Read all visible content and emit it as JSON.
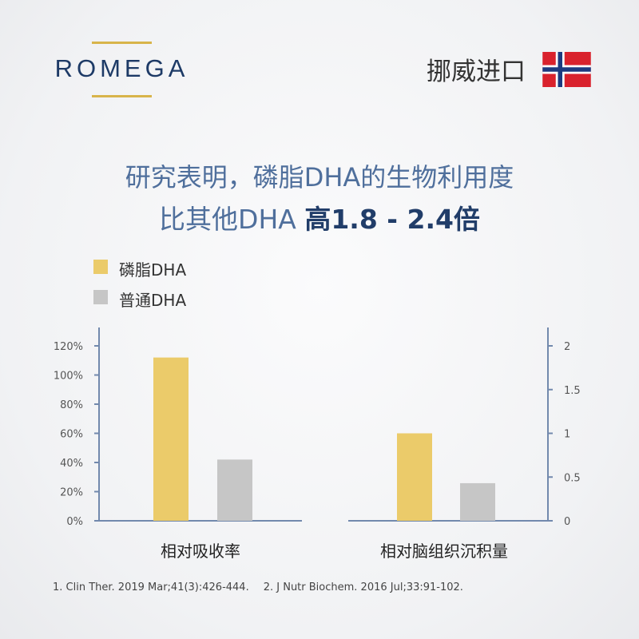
{
  "brand": {
    "name": "ROMEGA"
  },
  "origin_text": "挪威进口",
  "headline": {
    "line1": "研究表明，磷脂DHA的生物利用度",
    "line2_prefix": "比其他DHA ",
    "line2_strong": "高1.8 - 2.4倍"
  },
  "legend": [
    {
      "label": "磷脂DHA",
      "color": "#ebcb6a"
    },
    {
      "label": "普通DHA",
      "color": "#c6c6c6"
    }
  ],
  "colors": {
    "axis": "#7289ad",
    "flag_red": "#d9222d",
    "flag_blue": "#1d3a80"
  },
  "chart_data": [
    {
      "type": "bar",
      "xlabel": "相对吸收率",
      "ylim": [
        0,
        120
      ],
      "yticks": [
        "120%",
        "100%",
        "80%",
        "60%",
        "40%",
        "20%",
        "0%"
      ],
      "ytick_values": [
        120,
        100,
        80,
        60,
        40,
        20,
        0
      ],
      "axis_side": "left",
      "series": [
        {
          "name": "磷脂DHA",
          "values": [
            112
          ]
        },
        {
          "name": "普通DHA",
          "values": [
            42
          ]
        }
      ]
    },
    {
      "type": "bar",
      "xlabel": "相对脑组织沉积量",
      "ylim": [
        0,
        2
      ],
      "yticks": [
        "2",
        "1.5",
        "1",
        "0.5",
        "0"
      ],
      "ytick_values": [
        2,
        1.5,
        1,
        0.5,
        0
      ],
      "axis_side": "right",
      "series": [
        {
          "name": "磷脂DHA",
          "values": [
            1.0
          ]
        },
        {
          "name": "普通DHA",
          "values": [
            0.43
          ]
        }
      ]
    }
  ],
  "footnotes": [
    "1. Clin Ther. 2019 Mar;41(3):426-444.",
    "2. J Nutr Biochem. 2016 Jul;33:91-102."
  ]
}
